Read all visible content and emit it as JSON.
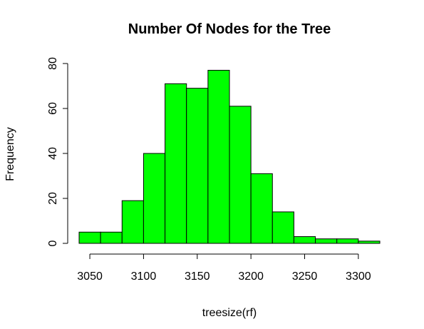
{
  "chart_data": {
    "type": "bar",
    "title": "Number Of Nodes for the Tree",
    "xlabel": "treesize(rf)",
    "ylabel": "Frequency",
    "bar_color": "#00ff00",
    "bin_width": 20,
    "bins": [
      {
        "start": 3040,
        "end": 3060,
        "count": 5
      },
      {
        "start": 3060,
        "end": 3080,
        "count": 5
      },
      {
        "start": 3080,
        "end": 3100,
        "count": 19
      },
      {
        "start": 3100,
        "end": 3120,
        "count": 40
      },
      {
        "start": 3120,
        "end": 3140,
        "count": 71
      },
      {
        "start": 3140,
        "end": 3160,
        "count": 69
      },
      {
        "start": 3160,
        "end": 3180,
        "count": 77
      },
      {
        "start": 3180,
        "end": 3200,
        "count": 61
      },
      {
        "start": 3200,
        "end": 3220,
        "count": 31
      },
      {
        "start": 3220,
        "end": 3240,
        "count": 14
      },
      {
        "start": 3240,
        "end": 3260,
        "count": 3
      },
      {
        "start": 3260,
        "end": 3280,
        "count": 2
      },
      {
        "start": 3280,
        "end": 3300,
        "count": 2
      },
      {
        "start": 3300,
        "end": 3320,
        "count": 1
      }
    ],
    "xticks": [
      3050,
      3100,
      3150,
      3200,
      3250,
      3300
    ],
    "yticks": [
      0,
      20,
      40,
      60,
      80
    ],
    "xlim": [
      3040,
      3320
    ],
    "ylim": [
      0,
      80
    ]
  }
}
